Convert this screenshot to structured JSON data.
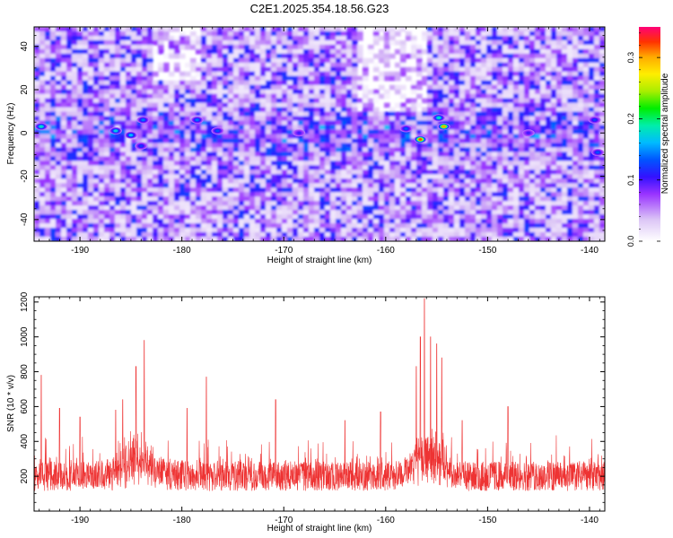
{
  "title": "C2E1.2025.354.18.56.G23",
  "chart_data": [
    {
      "type": "heatmap",
      "name": "spectrogram",
      "xlabel": "Height of straight line (km)",
      "ylabel": "Frequency (Hz)",
      "xlim": [
        -194.5,
        -138.5
      ],
      "ylim": [
        -50,
        49
      ],
      "xticks": [
        -190,
        -180,
        -170,
        -160,
        -150,
        -140
      ],
      "yticks": [
        -40,
        -20,
        0,
        20,
        40
      ],
      "colorbar": {
        "label": "Normalized spectral amplitude",
        "range": [
          0,
          0.35
        ],
        "ticks": [
          0.0,
          0.1,
          0.2,
          0.3
        ],
        "tick_labels": [
          "0.0",
          "0.1",
          "0.2",
          "0.3"
        ]
      },
      "hotspots": [
        {
          "x": -193.8,
          "y": 3,
          "value": 0.18
        },
        {
          "x": -186.5,
          "y": 1,
          "value": 0.17
        },
        {
          "x": -185.0,
          "y": -1,
          "value": 0.16
        },
        {
          "x": -183.8,
          "y": 6,
          "value": 0.14
        },
        {
          "x": -184.0,
          "y": -6,
          "value": 0.12
        },
        {
          "x": -178.5,
          "y": 6,
          "value": 0.14
        },
        {
          "x": -176.5,
          "y": 1,
          "value": 0.13
        },
        {
          "x": -168.5,
          "y": 0,
          "value": 0.1
        },
        {
          "x": -158.0,
          "y": 2,
          "value": 0.13
        },
        {
          "x": -156.6,
          "y": -3,
          "value": 0.32
        },
        {
          "x": -154.3,
          "y": 3,
          "value": 0.3
        },
        {
          "x": -154.8,
          "y": 7,
          "value": 0.18
        },
        {
          "x": -146.0,
          "y": 0,
          "value": 0.1
        },
        {
          "x": -139.2,
          "y": -9,
          "value": 0.13
        },
        {
          "x": -139.5,
          "y": 6,
          "value": 0.12
        }
      ]
    },
    {
      "type": "line",
      "name": "snr",
      "xlabel": "Height of straight line (km)",
      "ylabel": "SNR (10 * v/v)",
      "xlim": [
        -194.5,
        -138.5
      ],
      "ylim": [
        0,
        1230
      ],
      "xticks": [
        -190,
        -180,
        -170,
        -160,
        -150,
        -140
      ],
      "yticks": [
        200,
        400,
        600,
        800,
        1000,
        1200
      ],
      "color": "#ee3333",
      "baseline": 200,
      "peaks": [
        {
          "x": -193.8,
          "y": 780
        },
        {
          "x": -192.0,
          "y": 590
        },
        {
          "x": -190.0,
          "y": 540
        },
        {
          "x": -186.5,
          "y": 580
        },
        {
          "x": -185.8,
          "y": 640
        },
        {
          "x": -184.5,
          "y": 830
        },
        {
          "x": -183.7,
          "y": 980
        },
        {
          "x": -179.5,
          "y": 590
        },
        {
          "x": -177.6,
          "y": 770
        },
        {
          "x": -170.8,
          "y": 640
        },
        {
          "x": -164.0,
          "y": 520
        },
        {
          "x": -160.5,
          "y": 570
        },
        {
          "x": -157.0,
          "y": 830
        },
        {
          "x": -156.6,
          "y": 1000
        },
        {
          "x": -156.2,
          "y": 1220
        },
        {
          "x": -155.6,
          "y": 1000
        },
        {
          "x": -155.0,
          "y": 960
        },
        {
          "x": -154.5,
          "y": 880
        },
        {
          "x": -152.5,
          "y": 520
        },
        {
          "x": -148.0,
          "y": 600
        }
      ]
    }
  ]
}
